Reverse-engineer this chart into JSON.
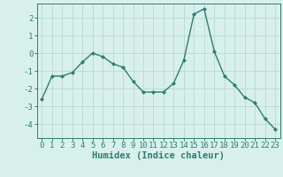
{
  "x": [
    0,
    1,
    2,
    3,
    4,
    5,
    6,
    7,
    8,
    9,
    10,
    11,
    12,
    13,
    14,
    15,
    16,
    17,
    18,
    19,
    20,
    21,
    22,
    23
  ],
  "y": [
    -2.6,
    -1.3,
    -1.3,
    -1.1,
    -0.5,
    0.0,
    -0.2,
    -0.6,
    -0.8,
    -1.6,
    -2.2,
    -2.2,
    -2.2,
    -1.7,
    -0.4,
    2.2,
    2.5,
    0.1,
    -1.3,
    -1.8,
    -2.5,
    -2.8,
    -3.7,
    -4.3
  ],
  "line_color": "#2e7d6e",
  "marker": "D",
  "marker_size": 2,
  "bg_color": "#d8f0ec",
  "grid_color": "#b8d8d4",
  "xlabel": "Humidex (Indice chaleur)",
  "ylim": [
    -4.8,
    2.8
  ],
  "xlim": [
    -0.5,
    23.5
  ],
  "yticks": [
    -4,
    -3,
    -2,
    -1,
    0,
    1,
    2
  ],
  "xticks": [
    0,
    1,
    2,
    3,
    4,
    5,
    6,
    7,
    8,
    9,
    10,
    11,
    12,
    13,
    14,
    15,
    16,
    17,
    18,
    19,
    20,
    21,
    22,
    23
  ],
  "xlabel_fontsize": 7.5,
  "tick_fontsize": 6.5,
  "line_width": 1.0
}
